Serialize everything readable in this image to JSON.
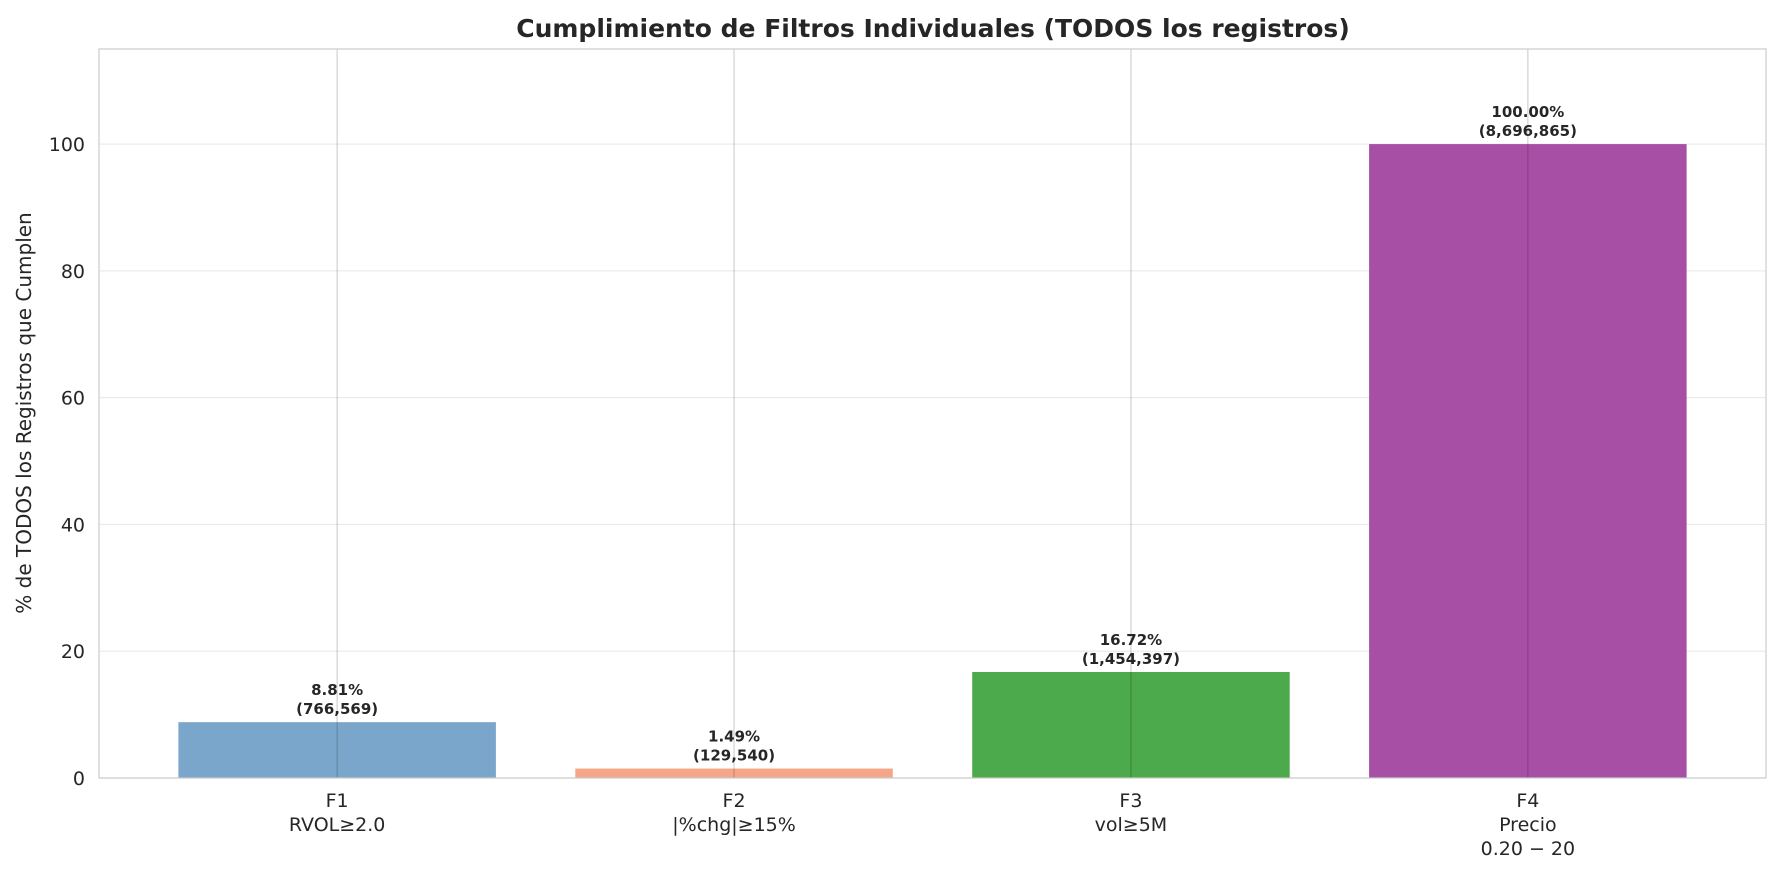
{
  "chart_data": {
    "type": "bar",
    "title": "Cumplimiento de Filtros Individuales (TODOS los registros)",
    "xlabel": "",
    "ylabel": "% de TODOS los Registros que Cumplen",
    "ylim": [
      0,
      115
    ],
    "yticks": [
      0,
      20,
      40,
      60,
      80,
      100
    ],
    "grid": true,
    "categories": [
      [
        "F1",
        "RVOL≥2.0"
      ],
      [
        "F2",
        "|%chg|≥15%"
      ],
      [
        "F3",
        "vol≥5M"
      ],
      [
        "F4",
        "Precio",
        "0.20 − 20"
      ]
    ],
    "values": [
      8.81,
      1.49,
      16.72,
      100.0
    ],
    "value_labels": [
      "8.81%",
      "1.49%",
      "16.72%",
      "100.00%"
    ],
    "count_labels": [
      "(766,569)",
      "(129,540)",
      "(1,454,397)",
      "(8,696,865)"
    ],
    "colors": [
      "#7ba6cc",
      "#f6a688",
      "#4ca94c",
      "#a64fa4"
    ]
  }
}
